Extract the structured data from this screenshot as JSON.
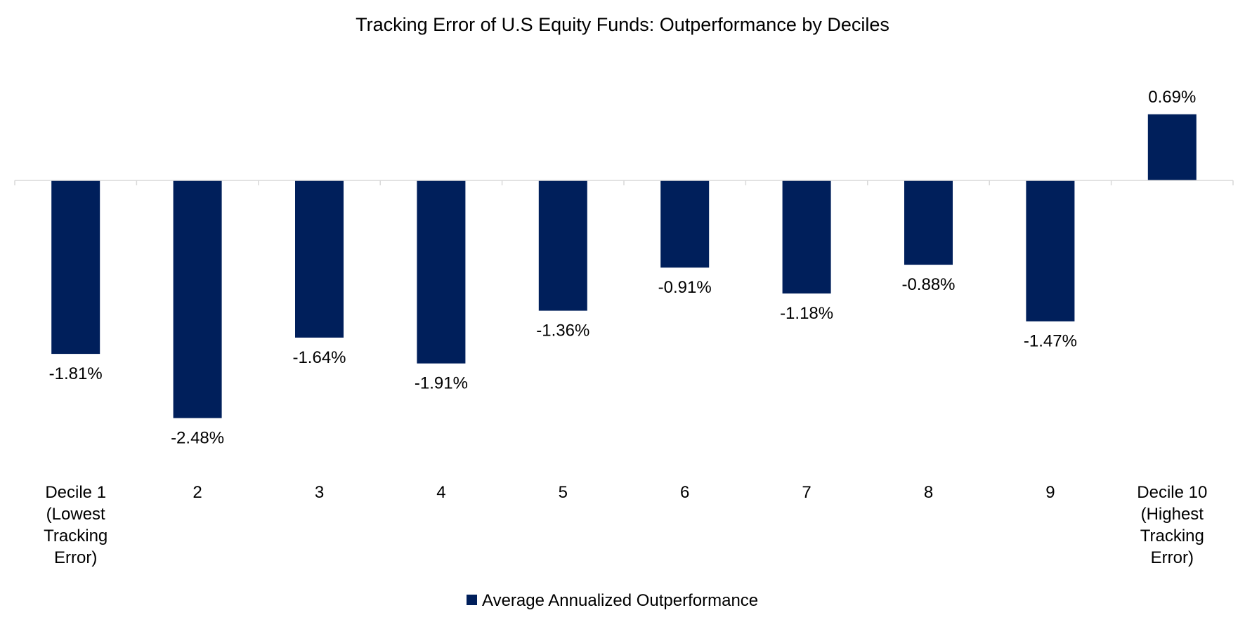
{
  "chart_data": {
    "type": "bar",
    "title": "Tracking Error of U.S Equity Funds: Outperformance by Deciles",
    "xlabel": "",
    "ylabel": "",
    "categories": [
      [
        "Decile 1",
        "(Lowest",
        "Tracking",
        "Error)"
      ],
      [
        "2"
      ],
      [
        "3"
      ],
      [
        "4"
      ],
      [
        "5"
      ],
      [
        "6"
      ],
      [
        "7"
      ],
      [
        "8"
      ],
      [
        "9"
      ],
      [
        "Decile 10",
        "(Highest",
        "Tracking",
        "Error)"
      ]
    ],
    "series": [
      {
        "name": "Average Annualized Outperformance",
        "values": [
          -1.81,
          -2.48,
          -1.64,
          -1.91,
          -1.36,
          -0.91,
          -1.18,
          -0.88,
          -1.47,
          0.69
        ],
        "labels": [
          "-1.81%",
          "-2.48%",
          "-1.64%",
          "-1.91%",
          "-1.36%",
          "-0.91%",
          "-1.18%",
          "-0.88%",
          "-1.47%",
          "0.69%"
        ],
        "color": "#001f5b"
      }
    ],
    "ylim": [
      -2.5,
      1.0
    ],
    "grid": false,
    "legend_position": "bottom-center"
  },
  "colors": {
    "bar": "#001f5b",
    "axis": "#d9d9d9",
    "text": "#000000"
  }
}
